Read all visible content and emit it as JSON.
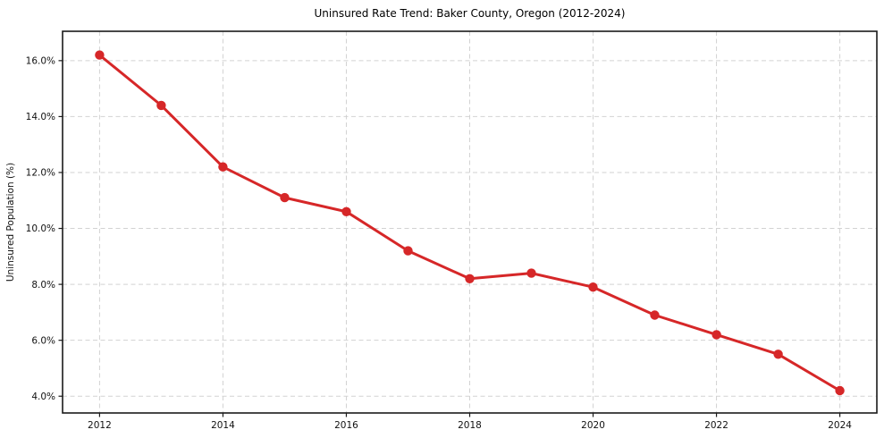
{
  "chart_data": {
    "type": "line",
    "title": "Uninsured Rate Trend: Baker County, Oregon (2012-2024)",
    "xlabel": "",
    "ylabel": "Uninsured Population (%)",
    "x": [
      2012,
      2013,
      2014,
      2015,
      2016,
      2017,
      2018,
      2019,
      2020,
      2021,
      2022,
      2023,
      2024
    ],
    "values": [
      16.2,
      14.4,
      12.2,
      11.1,
      10.6,
      9.2,
      8.2,
      8.4,
      7.9,
      6.9,
      6.2,
      5.5,
      4.2
    ],
    "x_ticks": [
      2012,
      2014,
      2016,
      2018,
      2020,
      2022,
      2024
    ],
    "x_tick_labels": [
      "2012",
      "2014",
      "2016",
      "2018",
      "2020",
      "2022",
      "2024"
    ],
    "y_ticks": [
      4,
      6,
      8,
      10,
      12,
      14,
      16
    ],
    "y_tick_labels": [
      "4.0%",
      "6.0%",
      "8.0%",
      "10.0%",
      "12.0%",
      "14.0%",
      "16.0%"
    ],
    "xlim": [
      2011.4,
      2024.6
    ],
    "ylim": [
      3.4,
      17.05
    ],
    "grid": true,
    "grid_style": "dashed",
    "legend": "none",
    "line_color": "#d62728",
    "marker": "o",
    "grid_color": "#d2d2d2",
    "spine_color": "#1a1a1a",
    "tick_color": "#1a1a1a",
    "text_color": "#111111",
    "background_color": "#ffffff"
  }
}
